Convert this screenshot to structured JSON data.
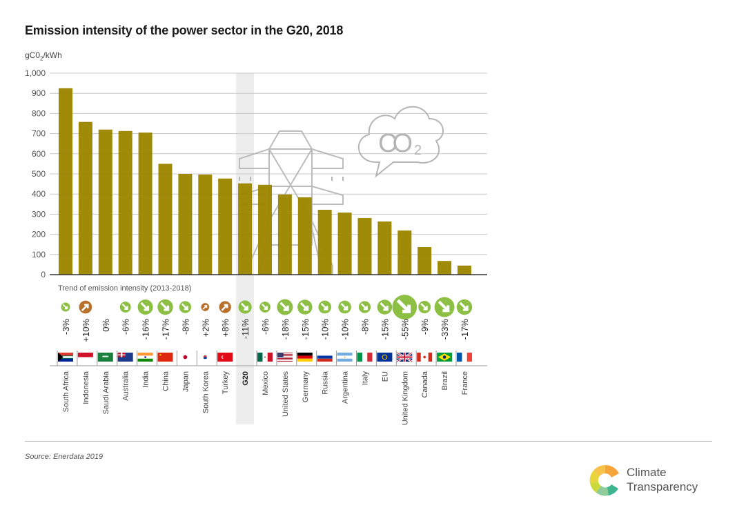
{
  "chart_data": {
    "type": "bar",
    "title": "Emission intensity of the power sector in the G20, 2018",
    "ylabel": "gC0₂/kWh",
    "ylabel_parts": {
      "main": "gC0",
      "sub": "2",
      "rest": "/kWh"
    },
    "xlabel": "",
    "ylim": [
      0,
      1000
    ],
    "yticks": [
      0,
      100,
      200,
      300,
      400,
      500,
      600,
      700,
      800,
      900,
      1000
    ],
    "ytick_labels": [
      "0",
      "100",
      "200",
      "300",
      "400",
      "500",
      "600",
      "700",
      "800",
      "900",
      "1,000"
    ],
    "grid": true,
    "bar_color": "#9C8700",
    "highlight_category": "G20",
    "highlight_color": "#EDEDED",
    "categories": [
      "South Africa",
      "Indonesia",
      "Saudi Arabia",
      "Australia",
      "India",
      "China",
      "Japan",
      "South Korea",
      "Turkey",
      "G20",
      "Mexico",
      "United States",
      "Germany",
      "Russia",
      "Argentina",
      "Italy",
      "EU",
      "United Kingdom",
      "Canada",
      "Brazil",
      "France"
    ],
    "values": [
      925,
      758,
      720,
      713,
      705,
      550,
      500,
      497,
      477,
      453,
      446,
      398,
      384,
      322,
      308,
      281,
      264,
      219,
      137,
      68,
      45
    ],
    "trend": {
      "title": "Trend of emission intensity (2013-2018)",
      "labels": [
        "-3%",
        "+10%",
        "0%",
        "-6%",
        "-16%",
        "-17%",
        "-8%",
        "+2%",
        "+8%",
        "-11%",
        "-6%",
        "-18%",
        "-15%",
        "-10%",
        "-10%",
        "-8%",
        "-15%",
        "-55%",
        "-9%",
        "-33%",
        "-17%"
      ],
      "values": [
        -3,
        10,
        0,
        -6,
        -16,
        -17,
        -8,
        2,
        8,
        -11,
        -6,
        -18,
        -15,
        -10,
        -10,
        -8,
        -15,
        -55,
        -9,
        -33,
        -17
      ],
      "decrease_color": "#8DBF45",
      "increase_color": "#B8702A"
    },
    "flags": [
      "south-africa",
      "indonesia",
      "saudi-arabia",
      "australia",
      "india",
      "china",
      "japan",
      "south-korea",
      "turkey",
      "",
      "mexico",
      "united-states",
      "germany",
      "russia",
      "argentina",
      "italy",
      "eu",
      "united-kingdom",
      "canada",
      "brazil",
      "france"
    ],
    "illustrations": {
      "cloud_text": "CO",
      "cloud_sub": "2"
    }
  },
  "source": "Source: Enerdata 2019",
  "logo": {
    "line1": "Climate",
    "line2": "Transparency"
  }
}
